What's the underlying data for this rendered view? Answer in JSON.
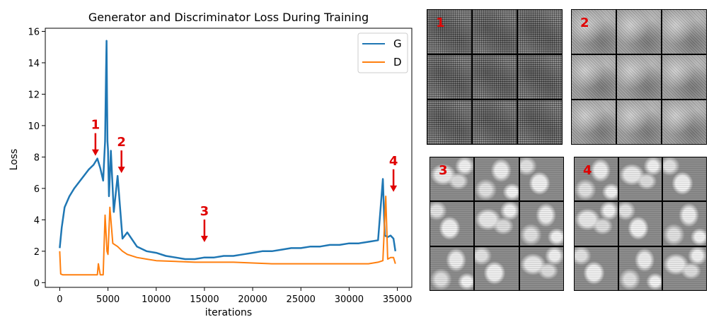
{
  "chart_data": {
    "type": "line",
    "title": "Generator and Discriminator Loss During Training",
    "xlabel": "iterations",
    "ylabel": "Loss",
    "xlim": [
      -1500,
      36500
    ],
    "ylim": [
      -0.3,
      16.2
    ],
    "xticks": [
      0,
      5000,
      10000,
      15000,
      20000,
      25000,
      30000,
      35000
    ],
    "yticks": [
      0,
      2,
      4,
      6,
      8,
      10,
      12,
      14,
      16
    ],
    "grid": false,
    "legend": "top-right",
    "series": [
      {
        "name": "G",
        "color": "#1f77b4",
        "x": [
          0,
          200,
          500,
          1000,
          1500,
          2000,
          2500,
          3000,
          3500,
          3900,
          4200,
          4500,
          4700,
          4800,
          4850,
          4900,
          4950,
          5000,
          5100,
          5300,
          5600,
          6000,
          6500,
          7000,
          8000,
          9000,
          10000,
          11000,
          12000,
          13000,
          14000,
          15000,
          16000,
          17000,
          18000,
          19000,
          20000,
          21000,
          22000,
          23000,
          24000,
          25000,
          26000,
          27000,
          28000,
          29000,
          30000,
          31000,
          32000,
          33000,
          33500,
          33700,
          34000,
          34300,
          34600,
          34800
        ],
        "y": [
          2.2,
          3.5,
          4.8,
          5.5,
          6.0,
          6.4,
          6.8,
          7.2,
          7.5,
          7.9,
          7.3,
          6.5,
          9.0,
          13.5,
          15.4,
          12.0,
          9.0,
          8.5,
          5.5,
          8.4,
          4.5,
          6.8,
          2.8,
          3.2,
          2.3,
          2.0,
          1.9,
          1.7,
          1.6,
          1.5,
          1.5,
          1.6,
          1.6,
          1.7,
          1.7,
          1.8,
          1.9,
          2.0,
          2.0,
          2.1,
          2.2,
          2.2,
          2.3,
          2.3,
          2.4,
          2.4,
          2.5,
          2.5,
          2.6,
          2.7,
          6.6,
          3.0,
          2.9,
          3.0,
          2.8,
          2.0
        ]
      },
      {
        "name": "D",
        "color": "#ff7f0e",
        "x": [
          0,
          100,
          300,
          1000,
          2000,
          3000,
          3900,
          4000,
          4200,
          4500,
          4700,
          4900,
          5000,
          5200,
          5500,
          6000,
          6500,
          7000,
          8000,
          9000,
          10000,
          12000,
          14000,
          16000,
          18000,
          20000,
          22000,
          24000,
          26000,
          28000,
          30000,
          32000,
          33000,
          33500,
          33800,
          34000,
          34300,
          34600,
          34800
        ],
        "y": [
          2.0,
          0.55,
          0.5,
          0.5,
          0.5,
          0.5,
          0.5,
          1.2,
          0.5,
          0.5,
          4.3,
          2.0,
          1.8,
          4.8,
          2.5,
          2.3,
          2.0,
          1.8,
          1.6,
          1.5,
          1.4,
          1.35,
          1.3,
          1.3,
          1.3,
          1.25,
          1.2,
          1.2,
          1.2,
          1.2,
          1.2,
          1.2,
          1.3,
          1.4,
          5.5,
          1.5,
          1.6,
          1.6,
          1.2
        ]
      }
    ],
    "annotations": [
      {
        "label": "1",
        "x": 3700,
        "y": 7.9
      },
      {
        "label": "2",
        "x": 6400,
        "y": 6.8
      },
      {
        "label": "3",
        "x": 15000,
        "y": 2.4
      },
      {
        "label": "4",
        "x": 34600,
        "y": 5.6
      }
    ]
  },
  "panels": [
    {
      "label": "1"
    },
    {
      "label": "2"
    },
    {
      "label": "3"
    },
    {
      "label": "4"
    }
  ],
  "colors": {
    "annotation": "#e00000",
    "axis": "#000000"
  }
}
